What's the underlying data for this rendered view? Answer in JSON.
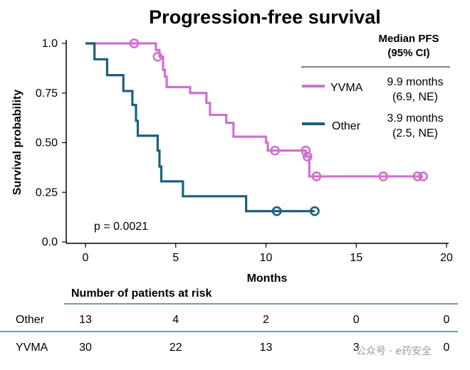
{
  "chart_data": {
    "type": "line",
    "subtype": "kaplan-meier step",
    "title": "Progression-free survival",
    "xlabel": "Months",
    "ylabel": "Survival probability",
    "xlim": [
      0,
      20
    ],
    "ylim": [
      0,
      1
    ],
    "xticks": [
      0,
      5,
      10,
      15,
      20
    ],
    "yticks": [
      0,
      0.25,
      0.5,
      0.75,
      1.0
    ],
    "ytick_labels": [
      "0.0",
      "0.25",
      "0.50",
      "0.75",
      "1.0"
    ],
    "grid": false,
    "annotation": "p = 0.0021",
    "legend": {
      "position": "top-right",
      "header_line1": "Median PFS",
      "header_line2": "(95% CI)",
      "entries": [
        {
          "name": "YVMA",
          "median": "9.9 months",
          "ci": "(6.9, NE)"
        },
        {
          "name": "Other",
          "median": "3.9 months",
          "ci": "(2.5, NE)"
        }
      ]
    },
    "series": [
      {
        "name": "YVMA",
        "color": "#d070cf",
        "steps": [
          [
            0,
            1.0
          ],
          [
            3.9,
            0.967
          ],
          [
            4.1,
            0.933
          ],
          [
            4.3,
            0.867
          ],
          [
            4.4,
            0.833
          ],
          [
            4.5,
            0.78
          ],
          [
            5.8,
            0.75
          ],
          [
            6.7,
            0.7
          ],
          [
            6.9,
            0.64
          ],
          [
            7.8,
            0.6
          ],
          [
            8.2,
            0.53
          ],
          [
            10.0,
            0.5
          ],
          [
            10.1,
            0.46
          ],
          [
            12.2,
            0.43
          ],
          [
            12.4,
            0.33
          ],
          [
            18.7,
            0.33
          ]
        ],
        "censored": [
          [
            2.7,
            1.0
          ],
          [
            4.0,
            0.933
          ],
          [
            10.5,
            0.46
          ],
          [
            12.2,
            0.46
          ],
          [
            12.3,
            0.43
          ],
          [
            12.8,
            0.33
          ],
          [
            16.5,
            0.33
          ],
          [
            18.4,
            0.33
          ],
          [
            18.7,
            0.33
          ]
        ]
      },
      {
        "name": "Other",
        "color": "#1d5f7f",
        "steps": [
          [
            0,
            1.0
          ],
          [
            0.5,
            0.92
          ],
          [
            1.2,
            0.84
          ],
          [
            2.1,
            0.76
          ],
          [
            2.6,
            0.69
          ],
          [
            2.8,
            0.61
          ],
          [
            2.9,
            0.535
          ],
          [
            4.0,
            0.46
          ],
          [
            4.1,
            0.38
          ],
          [
            4.2,
            0.305
          ],
          [
            5.4,
            0.23
          ],
          [
            8.9,
            0.155
          ],
          [
            12.7,
            0.155
          ]
        ],
        "censored": [
          [
            10.6,
            0.155
          ],
          [
            12.7,
            0.155
          ]
        ]
      }
    ]
  },
  "risk_table": {
    "title": "Number of patients at risk",
    "rows": [
      {
        "name": "Other",
        "values": [
          "13",
          "4",
          "2",
          "0",
          "0"
        ]
      },
      {
        "name": "YVMA",
        "values": [
          "30",
          "22",
          "13",
          "3",
          "0"
        ]
      }
    ]
  },
  "watermark": "公众号 · e药安全"
}
